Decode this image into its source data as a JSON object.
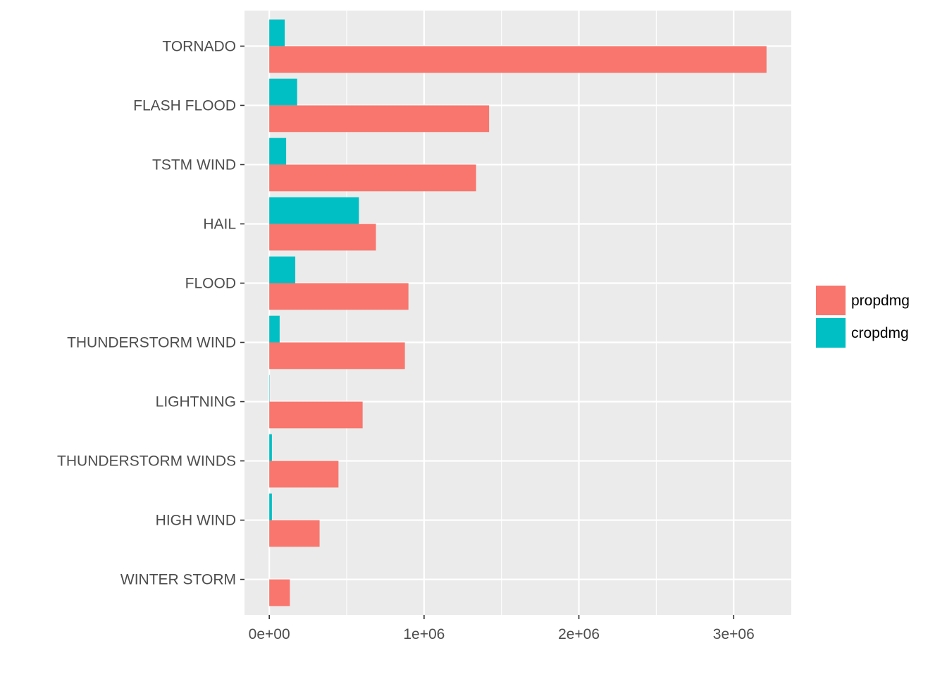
{
  "chart_data": {
    "type": "bar",
    "orientation": "horizontal",
    "categories": [
      "TORNADO",
      "FLASH FLOOD",
      "TSTM WIND",
      "HAIL",
      "FLOOD",
      "THUNDERSTORM WIND",
      "LIGHTNING",
      "THUNDERSTORM WINDS",
      "HIGH WIND",
      "WINTER STORM"
    ],
    "series": [
      {
        "name": "propdmg",
        "color": "#F8766D",
        "values": [
          3212000,
          1420000,
          1336000,
          689000,
          899000,
          876000,
          603000,
          447000,
          325000,
          133000
        ]
      },
      {
        "name": "cropdmg",
        "color": "#00BFC4",
        "values": [
          100000,
          180000,
          109000,
          579000,
          168000,
          67000,
          2000,
          17000,
          17000,
          0
        ]
      }
    ],
    "xlim": [
      -160000,
      3372000
    ],
    "xticks": [
      0,
      1000000,
      2000000,
      3000000
    ],
    "xtick_labels": [
      "0e+00",
      "1e+06",
      "2e+06",
      "3e+06"
    ],
    "xlabel": "",
    "ylabel": "",
    "title": "",
    "grid": true,
    "legend_position": "right",
    "panel_background": "#EBEBEB",
    "grid_color": "#FFFFFF"
  }
}
